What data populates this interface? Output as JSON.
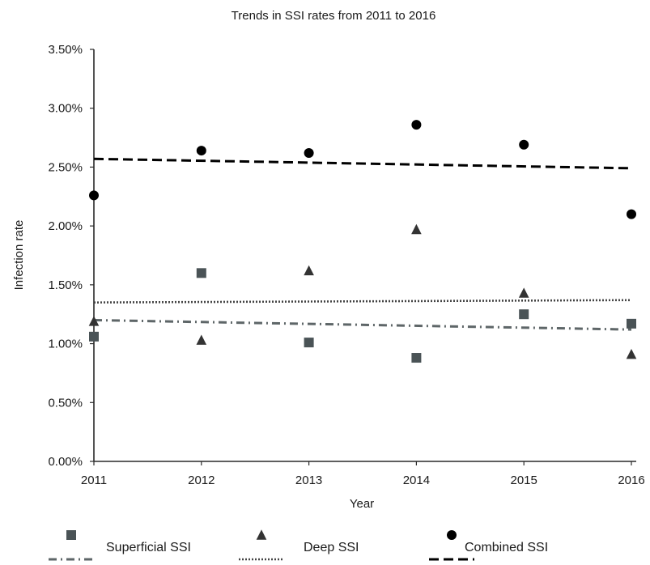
{
  "chart_data": {
    "type": "scatter",
    "title": "Trends in SSI rates from 2011 to 2016",
    "xlabel": "Year",
    "ylabel": "Infection rate",
    "x": [
      2011,
      2012,
      2013,
      2014,
      2015,
      2016
    ],
    "x_tick_labels": [
      "2011",
      "2012",
      "2013",
      "2014",
      "2015",
      "2016"
    ],
    "y_tick_labels": [
      "0.00%",
      "0.50%",
      "1.00%",
      "1.50%",
      "2.00%",
      "2.50%",
      "3.00%",
      "3.50%"
    ],
    "ylim": [
      0,
      3.5
    ],
    "y_unit": "%",
    "grid": false,
    "legend_position": "bottom",
    "series": [
      {
        "name": "Superficial SSI",
        "marker": "square",
        "color": "#4a5356",
        "values": [
          1.06,
          1.6,
          1.01,
          0.88,
          1.25,
          1.17
        ],
        "trendline": {
          "style": "dash-dot",
          "start": 1.2,
          "end": 1.12,
          "color": "#5e6668"
        }
      },
      {
        "name": "Deep SSI",
        "marker": "triangle",
        "color": "#333333",
        "values": [
          1.19,
          1.03,
          1.62,
          1.97,
          1.43,
          0.91
        ],
        "trendline": {
          "style": "dotted",
          "start": 1.35,
          "end": 1.37,
          "color": "#444444"
        }
      },
      {
        "name": "Combined SSI",
        "marker": "circle",
        "color": "#000000",
        "values": [
          2.26,
          2.64,
          2.62,
          2.86,
          2.69,
          2.1
        ],
        "trendline": {
          "style": "dashed",
          "start": 2.57,
          "end": 2.49,
          "color": "#000000"
        }
      }
    ]
  }
}
